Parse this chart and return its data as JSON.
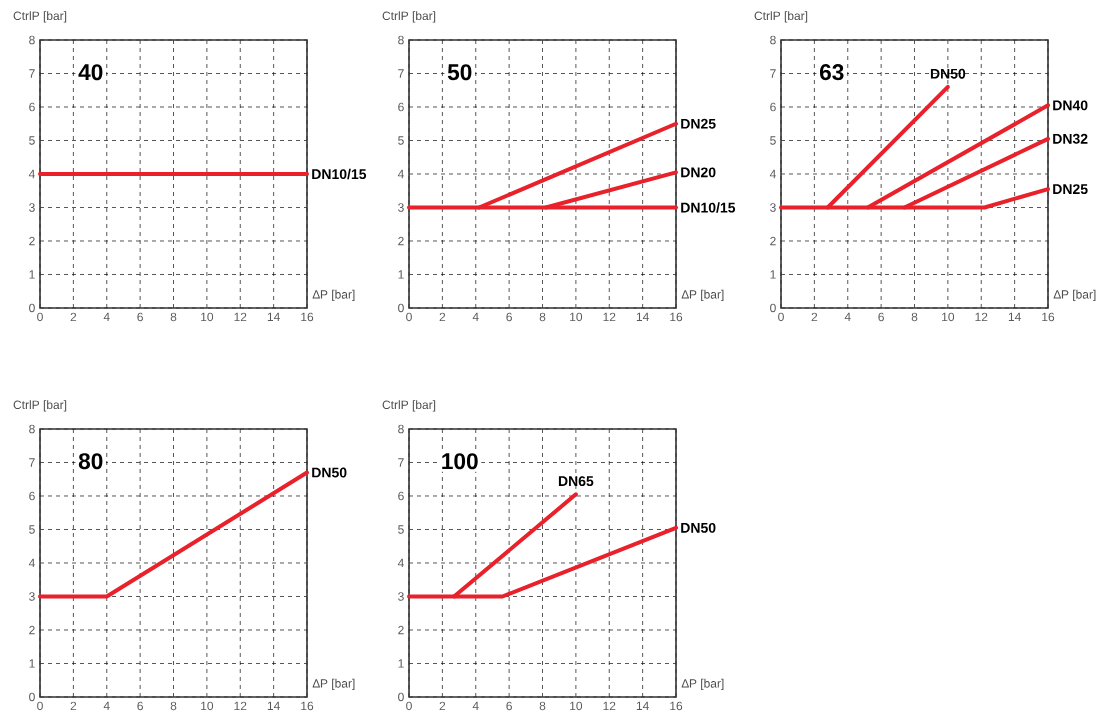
{
  "chart_data": [
    {
      "type": "line",
      "title": "40",
      "xlabel": "∆P [bar]",
      "ylabel": "CtrlP [bar]",
      "xlim": [
        0,
        16
      ],
      "ylim": [
        0,
        8
      ],
      "xticks": [
        0,
        2,
        4,
        6,
        8,
        10,
        12,
        14,
        16
      ],
      "yticks": [
        0,
        1,
        2,
        3,
        4,
        5,
        6,
        7,
        8
      ],
      "grid": true,
      "series": [
        {
          "name": "DN10/15",
          "color": "#e8212b",
          "x": [
            0,
            16
          ],
          "values": [
            4,
            4
          ]
        }
      ]
    },
    {
      "type": "line",
      "title": "50",
      "xlabel": "∆P [bar]",
      "ylabel": "CtrlP [bar]",
      "xlim": [
        0,
        16
      ],
      "ylim": [
        0,
        8
      ],
      "xticks": [
        0,
        2,
        4,
        6,
        8,
        10,
        12,
        14,
        16
      ],
      "yticks": [
        0,
        1,
        2,
        3,
        4,
        5,
        6,
        7,
        8
      ],
      "grid": true,
      "series": [
        {
          "name": "DN25",
          "color": "#e8212b",
          "x": [
            4.2,
            16
          ],
          "values": [
            3,
            5.5
          ]
        },
        {
          "name": "DN20",
          "color": "#e8212b",
          "x": [
            8.2,
            16
          ],
          "values": [
            3,
            4.05
          ]
        },
        {
          "name": "DN10/15",
          "color": "#e8212b",
          "x": [
            0,
            16
          ],
          "values": [
            3,
            3
          ]
        }
      ]
    },
    {
      "type": "line",
      "title": "63",
      "xlabel": "∆P [bar]",
      "ylabel": "CtrlP [bar]",
      "xlim": [
        0,
        16
      ],
      "ylim": [
        0,
        8
      ],
      "xticks": [
        0,
        2,
        4,
        6,
        8,
        10,
        12,
        14,
        16
      ],
      "yticks": [
        0,
        1,
        2,
        3,
        4,
        5,
        6,
        7,
        8
      ],
      "grid": true,
      "series": [
        {
          "name": "DN50",
          "color": "#e8212b",
          "x": [
            2.8,
            10
          ],
          "values": [
            3,
            6.6
          ]
        },
        {
          "name": "DN40",
          "color": "#e8212b",
          "x": [
            5.2,
            16
          ],
          "values": [
            3,
            6.05
          ]
        },
        {
          "name": "DN32",
          "color": "#e8212b",
          "x": [
            7.4,
            16
          ],
          "values": [
            3,
            5.05
          ]
        },
        {
          "name": "DN25",
          "color": "#e8212b",
          "x": [
            0,
            12.2,
            16
          ],
          "values": [
            3,
            3,
            3.55
          ]
        }
      ]
    },
    {
      "type": "line",
      "title": "80",
      "xlabel": "∆P [bar]",
      "ylabel": "CtrlP [bar]",
      "xlim": [
        0,
        16
      ],
      "ylim": [
        0,
        8
      ],
      "xticks": [
        0,
        2,
        4,
        6,
        8,
        10,
        12,
        14,
        16
      ],
      "yticks": [
        0,
        1,
        2,
        3,
        4,
        5,
        6,
        7,
        8
      ],
      "grid": true,
      "series": [
        {
          "name": "DN50",
          "color": "#e8212b",
          "x": [
            0,
            4,
            16
          ],
          "values": [
            3,
            3,
            6.7
          ]
        }
      ]
    },
    {
      "type": "line",
      "title": "100",
      "xlabel": "∆P [bar]",
      "ylabel": "CtrlP [bar]",
      "xlim": [
        0,
        16
      ],
      "ylim": [
        0,
        8
      ],
      "xticks": [
        0,
        2,
        4,
        6,
        8,
        10,
        12,
        14,
        16
      ],
      "yticks": [
        0,
        1,
        2,
        3,
        4,
        5,
        6,
        7,
        8
      ],
      "grid": true,
      "series": [
        {
          "name": "DN65",
          "color": "#e8212b",
          "x": [
            2.7,
            10
          ],
          "values": [
            3,
            6.05
          ]
        },
        {
          "name": "DN50",
          "color": "#e8212b",
          "x": [
            0,
            5.6,
            16
          ],
          "values": [
            3,
            3,
            5.05
          ]
        }
      ]
    }
  ]
}
